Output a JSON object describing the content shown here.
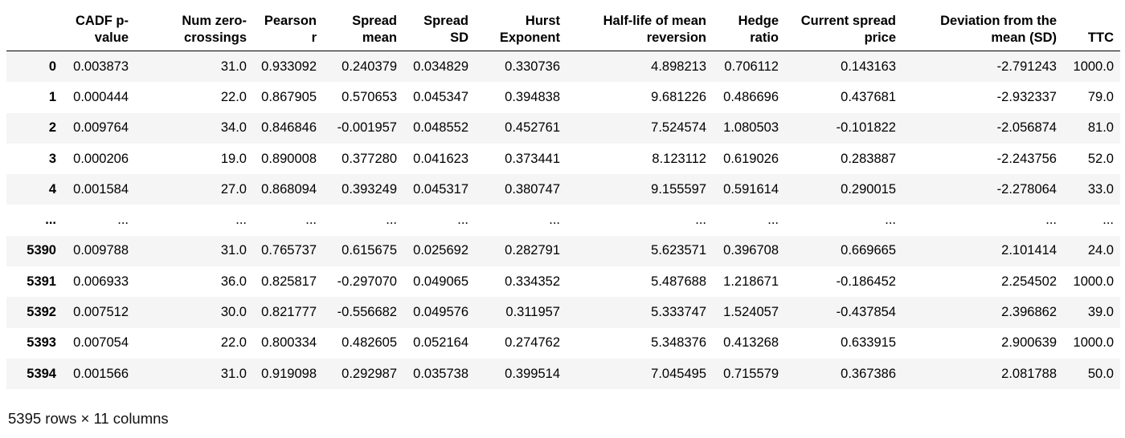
{
  "table": {
    "index_header": "",
    "columns": [
      "CADF p-value",
      "Num zero-crossings",
      "Pearson r",
      "Spread mean",
      "Spread SD",
      "Hurst Exponent",
      "Half-life of mean reversion",
      "Hedge ratio",
      "Current spread price",
      "Deviation from the mean (SD)",
      "TTC"
    ],
    "rows": [
      {
        "index": "0",
        "cells": [
          "0.003873",
          "31.0",
          "0.933092",
          "0.240379",
          "0.034829",
          "0.330736",
          "4.898213",
          "0.706112",
          "0.143163",
          "-2.791243",
          "1000.0"
        ]
      },
      {
        "index": "1",
        "cells": [
          "0.000444",
          "22.0",
          "0.867905",
          "0.570653",
          "0.045347",
          "0.394838",
          "9.681226",
          "0.486696",
          "0.437681",
          "-2.932337",
          "79.0"
        ]
      },
      {
        "index": "2",
        "cells": [
          "0.009764",
          "34.0",
          "0.846846",
          "-0.001957",
          "0.048552",
          "0.452761",
          "7.524574",
          "1.080503",
          "-0.101822",
          "-2.056874",
          "81.0"
        ]
      },
      {
        "index": "3",
        "cells": [
          "0.000206",
          "19.0",
          "0.890008",
          "0.377280",
          "0.041623",
          "0.373441",
          "8.123112",
          "0.619026",
          "0.283887",
          "-2.243756",
          "52.0"
        ]
      },
      {
        "index": "4",
        "cells": [
          "0.001584",
          "27.0",
          "0.868094",
          "0.393249",
          "0.045317",
          "0.380747",
          "9.155597",
          "0.591614",
          "0.290015",
          "-2.278064",
          "33.0"
        ]
      },
      {
        "index": "...",
        "cells": [
          "...",
          "...",
          "...",
          "...",
          "...",
          "...",
          "...",
          "...",
          "...",
          "...",
          "..."
        ]
      },
      {
        "index": "5390",
        "cells": [
          "0.009788",
          "31.0",
          "0.765737",
          "0.615675",
          "0.025692",
          "0.282791",
          "5.623571",
          "0.396708",
          "0.669665",
          "2.101414",
          "24.0"
        ]
      },
      {
        "index": "5391",
        "cells": [
          "0.006933",
          "36.0",
          "0.825817",
          "-0.297070",
          "0.049065",
          "0.334352",
          "5.487688",
          "1.218671",
          "-0.186452",
          "2.254502",
          "1000.0"
        ]
      },
      {
        "index": "5392",
        "cells": [
          "0.007512",
          "30.0",
          "0.821777",
          "-0.556682",
          "0.049576",
          "0.311957",
          "5.333747",
          "1.524057",
          "-0.437854",
          "2.396862",
          "39.0"
        ]
      },
      {
        "index": "5393",
        "cells": [
          "0.007054",
          "22.0",
          "0.800334",
          "0.482605",
          "0.052164",
          "0.274762",
          "5.348376",
          "0.413268",
          "0.633915",
          "2.900639",
          "1000.0"
        ]
      },
      {
        "index": "5394",
        "cells": [
          "0.001566",
          "31.0",
          "0.919098",
          "0.292987",
          "0.035738",
          "0.399514",
          "7.045495",
          "0.715579",
          "0.367386",
          "2.081788",
          "50.0"
        ]
      }
    ]
  },
  "footer": {
    "shape_text": "5395 rows × 11 columns"
  },
  "colors": {
    "striped_row": "#f5f5f5",
    "header_rule": "#000000"
  }
}
